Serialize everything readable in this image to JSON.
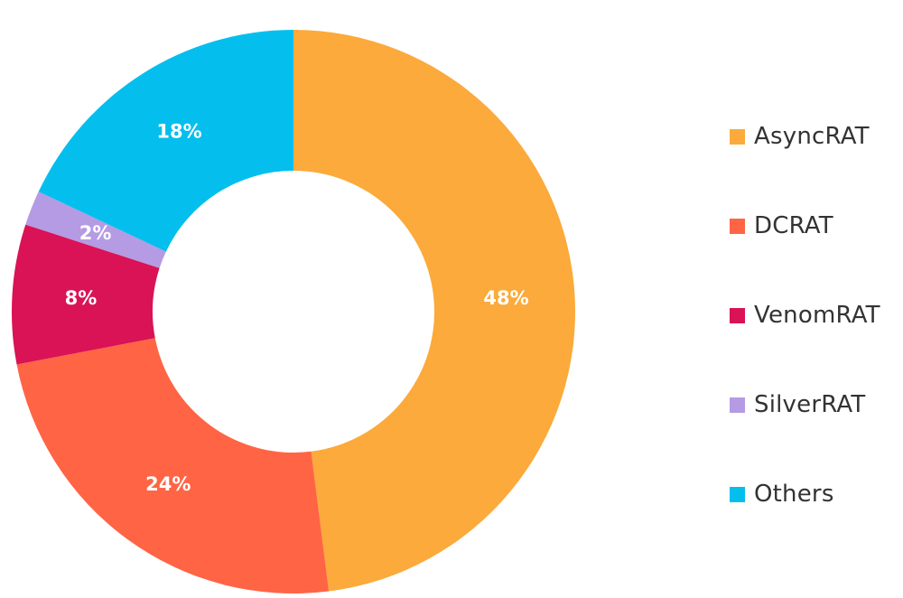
{
  "chart_data": {
    "type": "pie",
    "donut": true,
    "categories": [
      "AsyncRAT",
      "DCRAT",
      "VenomRAT",
      "SilverRAT",
      "Others"
    ],
    "values": [
      48,
      24,
      8,
      2,
      18
    ],
    "data_labels": [
      "48%",
      "24%",
      "8%",
      "2%",
      "18%"
    ],
    "colors": [
      "#FBAA3B",
      "#FF6445",
      "#D91355",
      "#B49BE3",
      "#04BFEE"
    ],
    "legend_position": "right",
    "title": ""
  }
}
